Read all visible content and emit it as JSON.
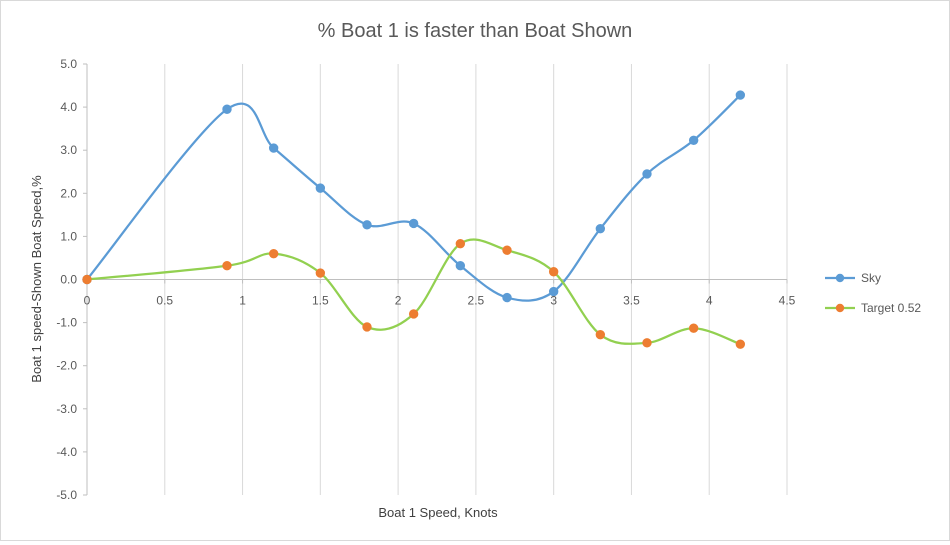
{
  "chart_data": {
    "type": "scatter-smooth",
    "title": "% Boat 1 is faster than Boat Shown",
    "xlabel": "Boat 1 Speed,  Knots",
    "ylabel": "Boat 1 speed-Shown Boat Speed,%",
    "xlim": [
      0,
      4.5
    ],
    "ylim": [
      -5.0,
      5.0
    ],
    "xticks": [
      0,
      0.5,
      1,
      1.5,
      2,
      2.5,
      3,
      3.5,
      4,
      4.5
    ],
    "xtick_labels": [
      "0",
      "0.5",
      "1",
      "1.5",
      "2",
      "2.5",
      "3",
      "3.5",
      "4",
      "4.5"
    ],
    "yticks": [
      5.0,
      4.0,
      3.0,
      2.0,
      1.0,
      0.0,
      -1.0,
      -2.0,
      -3.0,
      -4.0,
      -5.0
    ],
    "ytick_labels": [
      "5.0",
      "4.0",
      "3.0",
      "2.0",
      "1.0",
      "0.0",
      "-1.0",
      "-2.0",
      "-3.0",
      "-4.0",
      "-5.0"
    ],
    "grid": "vertical",
    "legend": "right",
    "series": [
      {
        "name": "Sky",
        "line_color": "#5b9bd5",
        "marker_color": "#5b9bd5",
        "x": [
          0,
          0.9,
          1.2,
          1.5,
          1.8,
          2.1,
          2.4,
          2.7,
          3.0,
          3.3,
          3.6,
          3.9,
          4.2
        ],
        "y": [
          0.0,
          3.95,
          3.05,
          2.12,
          1.27,
          1.3,
          0.32,
          -0.42,
          -0.28,
          1.18,
          2.45,
          3.23,
          4.28
        ]
      },
      {
        "name": "Target 0.52",
        "line_color": "#92d050",
        "marker_color": "#ed7d31",
        "x": [
          0,
          0.9,
          1.2,
          1.5,
          1.8,
          2.1,
          2.4,
          2.7,
          3.0,
          3.3,
          3.6,
          3.9,
          4.2
        ],
        "y": [
          0.0,
          0.32,
          0.6,
          0.15,
          -1.1,
          -0.8,
          0.83,
          0.68,
          0.18,
          -1.28,
          -1.47,
          -1.13,
          -1.5
        ]
      }
    ]
  }
}
